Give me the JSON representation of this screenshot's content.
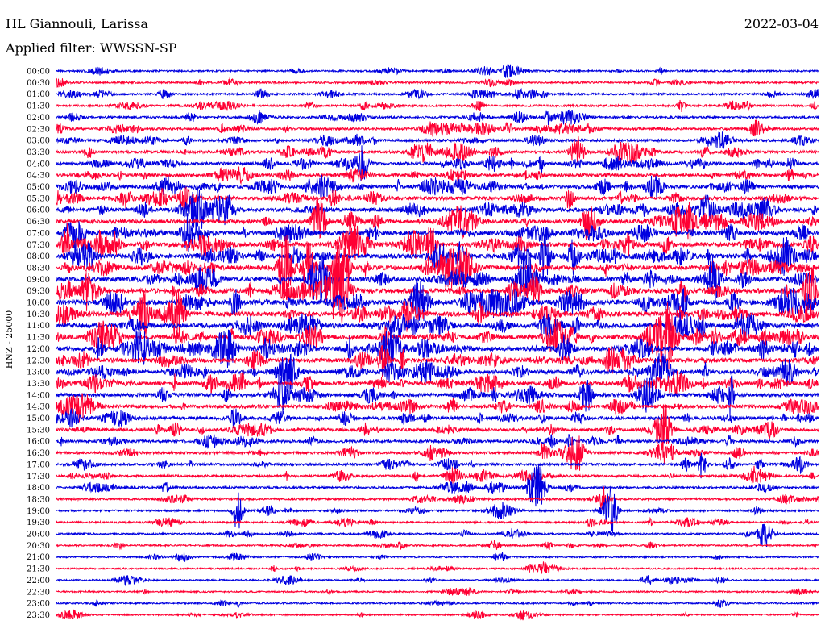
{
  "header": {
    "station": "HL Giannouli, Larissa",
    "date": "2022-03-04",
    "filter": "Applied filter: WWSSN-SP"
  },
  "chart_data": {
    "type": "line",
    "title": "HL Giannouli, Larissa",
    "subtitle": "Applied filter: WWSSN-SP",
    "date": "2022-03-04",
    "ylabel": "HNZ - 25000",
    "xlabel": "",
    "row_labels": [
      "00:00",
      "00:30",
      "01:00",
      "01:30",
      "02:00",
      "02:30",
      "03:00",
      "03:30",
      "04:00",
      "04:30",
      "05:00",
      "05:30",
      "06:00",
      "06:30",
      "07:00",
      "07:30",
      "08:00",
      "08:30",
      "09:00",
      "09:30",
      "10:00",
      "10:30",
      "11:00",
      "11:30",
      "12:00",
      "12:30",
      "13:00",
      "13:30",
      "14:00",
      "14:30",
      "15:00",
      "15:30",
      "16:00",
      "16:30",
      "17:00",
      "17:30",
      "18:00",
      "18:30",
      "19:00",
      "19:30",
      "20:00",
      "20:30",
      "21:00",
      "21:30",
      "22:00",
      "22:30",
      "23:00",
      "23:30"
    ],
    "trace_colors": [
      "#0000e0",
      "#ff0033"
    ],
    "grid": false
  }
}
